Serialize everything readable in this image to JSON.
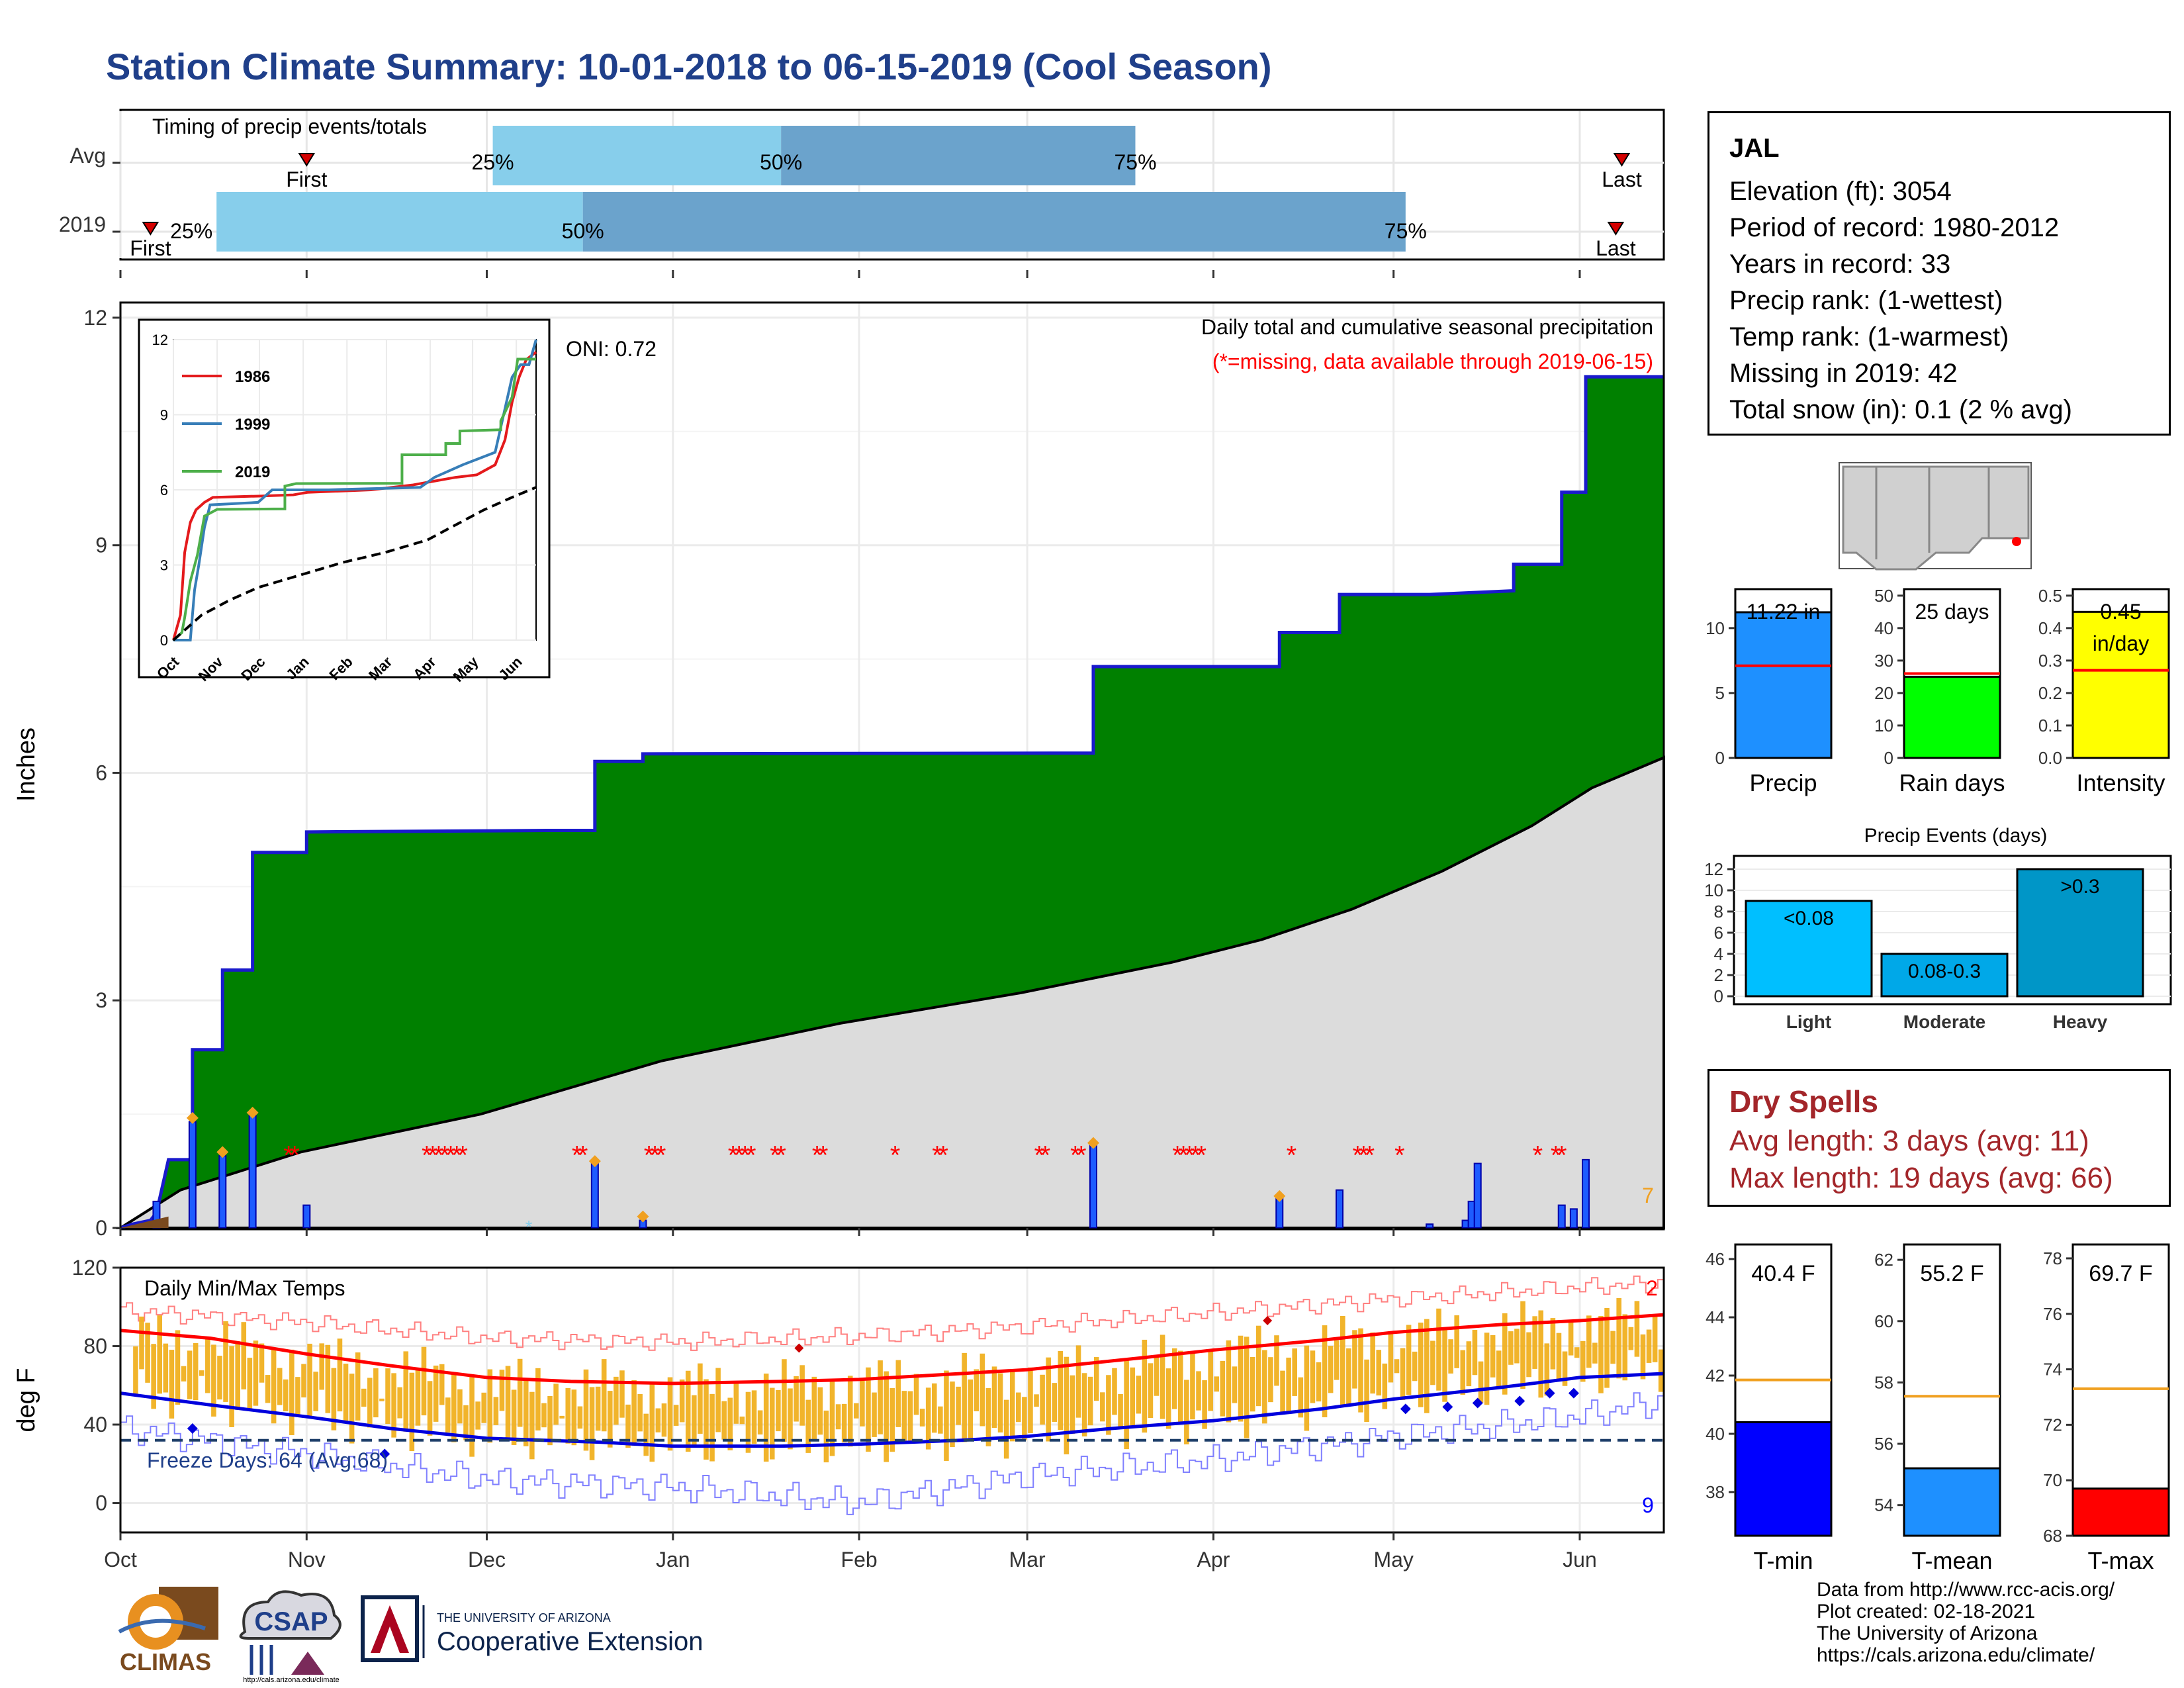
{
  "title": "Station Climate Summary: 10-01-2018 to 06-15-2019 (Cool Season)",
  "colors": {
    "title": "#1f3f8a",
    "green": "#008000",
    "gray": "#dcdcdc",
    "precip_line": "#1a1acc",
    "tmax": "#ff0000",
    "tmin": "#0000ff",
    "range_bar": "#f0b020",
    "dry": "#a3262a",
    "light_blue": "#87ceeb",
    "mid_blue": "#6ba3cc"
  },
  "timing": {
    "label": "Timing of precip events/totals",
    "rows": [
      {
        "name": "Avg",
        "first_label": "First",
        "last_label": "Last",
        "p25": "25%",
        "p50": "50%",
        "p75": "75%",
        "first": 0.28,
        "p25_v": 0.08,
        "p50_v": 0.03,
        "p75_v": 0.33,
        "last": 0.05
      },
      {
        "name": "2019",
        "first_label": "First",
        "last_label": "Last",
        "p25": "25%",
        "p50": "50%",
        "p75": "75%"
      }
    ]
  },
  "chart_data": [
    {
      "type": "area",
      "title": "Daily total and cumulative seasonal precipitation",
      "subtitle": "(*=missing, data available through 2019-06-15)",
      "annotation": "ONI: 0.72",
      "ylabel": "Inches",
      "ylim": [
        0,
        12.2
      ],
      "yticks": [
        0,
        3,
        6,
        9,
        12
      ],
      "x_months": [
        "Oct",
        "Nov",
        "Dec",
        "Jan",
        "Feb",
        "Mar",
        "Apr",
        "May",
        "Jun"
      ],
      "x_month_day_offsets": [
        0,
        31,
        61,
        92,
        123,
        151,
        182,
        212,
        243
      ],
      "season_days": 257,
      "cumulative_2019": [
        [
          0,
          0
        ],
        [
          2,
          0.05
        ],
        [
          5,
          0.1
        ],
        [
          6,
          0.2
        ],
        [
          8,
          0.9
        ],
        [
          12,
          0.9
        ],
        [
          12,
          2.35
        ],
        [
          17,
          2.35
        ],
        [
          17,
          3.4
        ],
        [
          22,
          3.4
        ],
        [
          22,
          4.95
        ],
        [
          31,
          4.95
        ],
        [
          31,
          5.22
        ],
        [
          71,
          5.24
        ],
        [
          79,
          5.24
        ],
        [
          79,
          6.15
        ],
        [
          87,
          6.15
        ],
        [
          87,
          6.25
        ],
        [
          162,
          6.26
        ],
        [
          162,
          7.4
        ],
        [
          193,
          7.4
        ],
        [
          193,
          7.85
        ],
        [
          203,
          7.85
        ],
        [
          203,
          8.35
        ],
        [
          218,
          8.35
        ],
        [
          232,
          8.4
        ],
        [
          232,
          8.75
        ],
        [
          240,
          8.75
        ],
        [
          240,
          9.7
        ],
        [
          244,
          9.7
        ],
        [
          244,
          11.22
        ],
        [
          257,
          11.22
        ]
      ],
      "cumulative_avg": [
        [
          0,
          0
        ],
        [
          10,
          0.5
        ],
        [
          30,
          1.0
        ],
        [
          60,
          1.5
        ],
        [
          90,
          2.2
        ],
        [
          120,
          2.7
        ],
        [
          150,
          3.1
        ],
        [
          175,
          3.5
        ],
        [
          190,
          3.8
        ],
        [
          205,
          4.2
        ],
        [
          220,
          4.7
        ],
        [
          235,
          5.3
        ],
        [
          245,
          5.8
        ],
        [
          257,
          6.2
        ]
      ],
      "daily_bars": [
        [
          6,
          0.35
        ],
        [
          12,
          1.4
        ],
        [
          17,
          0.95
        ],
        [
          22,
          1.5
        ],
        [
          31,
          0.3
        ],
        [
          79,
          0.85
        ],
        [
          87,
          0.1
        ],
        [
          162,
          1.1
        ],
        [
          193,
          0.4
        ],
        [
          203,
          0.5
        ],
        [
          218,
          0.05
        ],
        [
          224,
          0.1
        ],
        [
          225,
          0.35
        ],
        [
          226,
          0.85
        ],
        [
          240,
          0.3
        ],
        [
          242,
          0.25
        ],
        [
          244,
          0.9
        ]
      ],
      "snow_days": [
        [
          12,
          1.45
        ],
        [
          17,
          1.0
        ],
        [
          22,
          1.52
        ],
        [
          79,
          0.88
        ],
        [
          87,
          0.15
        ],
        [
          162,
          1.12
        ],
        [
          193,
          0.42
        ]
      ],
      "missing_days": [
        28,
        29,
        51,
        52,
        53,
        54,
        55,
        56,
        57,
        76,
        77,
        88,
        89,
        90,
        102,
        103,
        104,
        105,
        109,
        110,
        116,
        117,
        129,
        136,
        137,
        153,
        154,
        159,
        160,
        176,
        177,
        178,
        179,
        180,
        195,
        206,
        207,
        208,
        213,
        236,
        239,
        240
      ],
      "count_label": "7",
      "inset": {
        "type": "line",
        "ylim": [
          0,
          12
        ],
        "yticks": [
          0,
          3,
          6,
          9,
          12
        ],
        "x_months": [
          "Oct",
          "Nov",
          "Dec",
          "Jan",
          "Feb",
          "Mar",
          "Apr",
          "May",
          "Jun"
        ],
        "series": [
          {
            "name": "1986",
            "color": "#e41a1c",
            "points": [
              [
                0,
                0
              ],
              [
                5,
                1
              ],
              [
                8,
                3.5
              ],
              [
                12,
                4.7
              ],
              [
                16,
                5.2
              ],
              [
                22,
                5.5
              ],
              [
                28,
                5.7
              ],
              [
                60,
                5.75
              ],
              [
                85,
                5.8
              ],
              [
                95,
                5.9
              ],
              [
                140,
                6.0
              ],
              [
                170,
                6.2
              ],
              [
                200,
                6.5
              ],
              [
                215,
                6.6
              ],
              [
                228,
                7.0
              ],
              [
                235,
                8.0
              ],
              [
                240,
                9.5
              ],
              [
                245,
                10.5
              ],
              [
                250,
                11.2
              ],
              [
                257,
                11.5
              ]
            ]
          },
          {
            "name": "1999",
            "color": "#377eb8",
            "points": [
              [
                0,
                0
              ],
              [
                12,
                0
              ],
              [
                15,
                2
              ],
              [
                18,
                3
              ],
              [
                22,
                4.5
              ],
              [
                26,
                5.4
              ],
              [
                60,
                5.5
              ],
              [
                70,
                6.0
              ],
              [
                110,
                6.0
              ],
              [
                175,
                6.1
              ],
              [
                185,
                6.5
              ],
              [
                205,
                7.0
              ],
              [
                228,
                7.5
              ],
              [
                232,
                8.5
              ],
              [
                240,
                10.5
              ],
              [
                246,
                11.0
              ],
              [
                252,
                11.0
              ],
              [
                257,
                12.0
              ]
            ]
          },
          {
            "name": "2019",
            "color": "#4daf4a",
            "points": [
              [
                0,
                0
              ],
              [
                6,
                0.3
              ],
              [
                8,
                0.9
              ],
              [
                12,
                2.35
              ],
              [
                17,
                3.4
              ],
              [
                22,
                4.95
              ],
              [
                31,
                5.22
              ],
              [
                79,
                5.24
              ],
              [
                79,
                6.15
              ],
              [
                87,
                6.25
              ],
              [
                162,
                6.26
              ],
              [
                162,
                7.4
              ],
              [
                193,
                7.4
              ],
              [
                193,
                7.85
              ],
              [
                203,
                7.85
              ],
              [
                203,
                8.35
              ],
              [
                232,
                8.4
              ],
              [
                232,
                8.75
              ],
              [
                240,
                9.7
              ],
              [
                244,
                11.22
              ],
              [
                257,
                11.22
              ]
            ]
          },
          {
            "name": "",
            "color": "#000000",
            "dashed": true,
            "points": [
              [
                0,
                0
              ],
              [
                20,
                1.0
              ],
              [
                40,
                1.6
              ],
              [
                60,
                2.1
              ],
              [
                90,
                2.6
              ],
              [
                120,
                3.1
              ],
              [
                150,
                3.5
              ],
              [
                180,
                4.0
              ],
              [
                200,
                4.6
              ],
              [
                220,
                5.2
              ],
              [
                240,
                5.7
              ],
              [
                257,
                6.1
              ]
            ]
          }
        ]
      }
    },
    {
      "type": "line",
      "title": "Daily Min/Max Temps",
      "ylabel": "deg F",
      "ylim": [
        -15,
        120
      ],
      "yticks": [
        0,
        40,
        80,
        120
      ],
      "freeze_threshold": 32,
      "freeze_label": "Freeze Days: 64 (Avg:68)",
      "max_count_label": "2",
      "min_count_label": "9",
      "avg_tmax": [
        [
          0,
          88
        ],
        [
          15,
          84
        ],
        [
          31,
          76
        ],
        [
          45,
          70
        ],
        [
          61,
          64
        ],
        [
          75,
          62
        ],
        [
          92,
          61
        ],
        [
          110,
          62
        ],
        [
          123,
          63
        ],
        [
          140,
          66
        ],
        [
          151,
          68
        ],
        [
          170,
          74
        ],
        [
          182,
          78
        ],
        [
          200,
          83
        ],
        [
          212,
          87
        ],
        [
          230,
          91
        ],
        [
          243,
          93
        ],
        [
          257,
          96
        ]
      ],
      "avg_tmin": [
        [
          0,
          56
        ],
        [
          15,
          50
        ],
        [
          31,
          44
        ],
        [
          45,
          38
        ],
        [
          61,
          33
        ],
        [
          80,
          31
        ],
        [
          92,
          29
        ],
        [
          110,
          29
        ],
        [
          123,
          30
        ],
        [
          140,
          32
        ],
        [
          151,
          34
        ],
        [
          165,
          38
        ],
        [
          182,
          42
        ],
        [
          200,
          48
        ],
        [
          212,
          53
        ],
        [
          230,
          59
        ],
        [
          243,
          64
        ],
        [
          257,
          66
        ]
      ],
      "record_high": [
        [
          0,
          98
        ],
        [
          31,
          92
        ],
        [
          61,
          84
        ],
        [
          92,
          82
        ],
        [
          123,
          85
        ],
        [
          151,
          90
        ],
        [
          182,
          97
        ],
        [
          212,
          104
        ],
        [
          243,
          110
        ],
        [
          257,
          112
        ]
      ],
      "record_low": [
        [
          0,
          38
        ],
        [
          31,
          25
        ],
        [
          61,
          12
        ],
        [
          92,
          8
        ],
        [
          123,
          0
        ],
        [
          151,
          14
        ],
        [
          182,
          22
        ],
        [
          212,
          34
        ],
        [
          243,
          44
        ],
        [
          257,
          52
        ]
      ]
    },
    {
      "type": "bar",
      "categories": [
        "Precip",
        "Rain days",
        "Intensity"
      ],
      "panels": [
        {
          "name": "Precip",
          "value": 11.22,
          "label": "11.22 in",
          "avg": 7.1,
          "ylim": [
            0,
            13
          ],
          "yticks": [
            0,
            5,
            10
          ],
          "color": "#1e90ff"
        },
        {
          "name": "Rain days",
          "value": 25,
          "label": "25 days",
          "avg": 26,
          "ylim": [
            0,
            52
          ],
          "yticks": [
            0,
            10,
            20,
            30,
            40,
            50
          ],
          "color": "#00ff00"
        },
        {
          "name": "Intensity",
          "value": 0.45,
          "label": "0.45 in/day",
          "label_top": "0.45",
          "label_bottom": "in/day",
          "avg": 0.27,
          "ylim": [
            0,
            0.52
          ],
          "yticks": [
            0.0,
            0.1,
            0.2,
            0.3,
            0.4,
            0.5
          ],
          "color": "#ffff00"
        }
      ]
    },
    {
      "type": "bar",
      "title": "Precip Events (days)",
      "categories": [
        "Light",
        "Moderate",
        "Heavy"
      ],
      "values": [
        9,
        4,
        12
      ],
      "bar_labels": [
        "<0.08",
        "0.08-0.3",
        ">0.3"
      ],
      "colors": [
        "#00bfff",
        "#00a8e8",
        "#0096c7"
      ],
      "ylim": [
        0,
        12.5
      ],
      "yticks": [
        0,
        2,
        4,
        6,
        8,
        10,
        12
      ]
    },
    {
      "type": "bar",
      "categories": [
        "T-min",
        "T-mean",
        "T-max"
      ],
      "panels": [
        {
          "name": "T-min",
          "value": 40.4,
          "label": "40.4 F",
          "avg": 41.85,
          "ylim": [
            36.5,
            46.5
          ],
          "yticks": [
            38,
            40,
            42,
            44,
            46
          ],
          "color": "#0000ff"
        },
        {
          "name": "T-mean",
          "value": 55.2,
          "label": "55.2 F",
          "avg": 57.55,
          "ylim": [
            53.0,
            62.5
          ],
          "yticks": [
            54,
            56,
            58,
            60,
            62
          ],
          "color": "#1e90ff"
        },
        {
          "name": "T-max",
          "value": 69.7,
          "label": "69.7 F",
          "avg": 73.3,
          "ylim": [
            68.0,
            78.5
          ],
          "yticks": [
            68,
            70,
            72,
            74,
            76,
            78
          ],
          "color": "#ff0000"
        }
      ]
    }
  ],
  "station": {
    "name": "JAL",
    "elevation": "Elevation (ft): 3054",
    "period": "Period of record: 1980-2012",
    "years": "Years in record: 33",
    "precip_rank": "Precip rank:  (1-wettest)",
    "temp_rank": "Temp rank:  (1-warmest)",
    "missing": "Missing in 2019: 42",
    "snow": "Total snow (in): 0.1 (2 % avg)"
  },
  "dry_spells": {
    "title": "Dry Spells",
    "avg": "Avg length: 3 days (avg: 11)",
    "max": "Max length: 19 days (avg: 66)"
  },
  "credits": {
    "line1": "Data from http://www.rcc-acis.org/",
    "line2": "Plot created: 02-18-2021",
    "line3": "The University of Arizona",
    "line4": "https://cals.arizona.edu/climate/"
  },
  "logos": {
    "climas": "CLIMAS",
    "csap": "CSAP",
    "csap_url": "http://cals.arizona.edu/climate",
    "ua_small": "THE UNIVERSITY OF ARIZONA",
    "ua_ext": "Cooperative Extension"
  }
}
